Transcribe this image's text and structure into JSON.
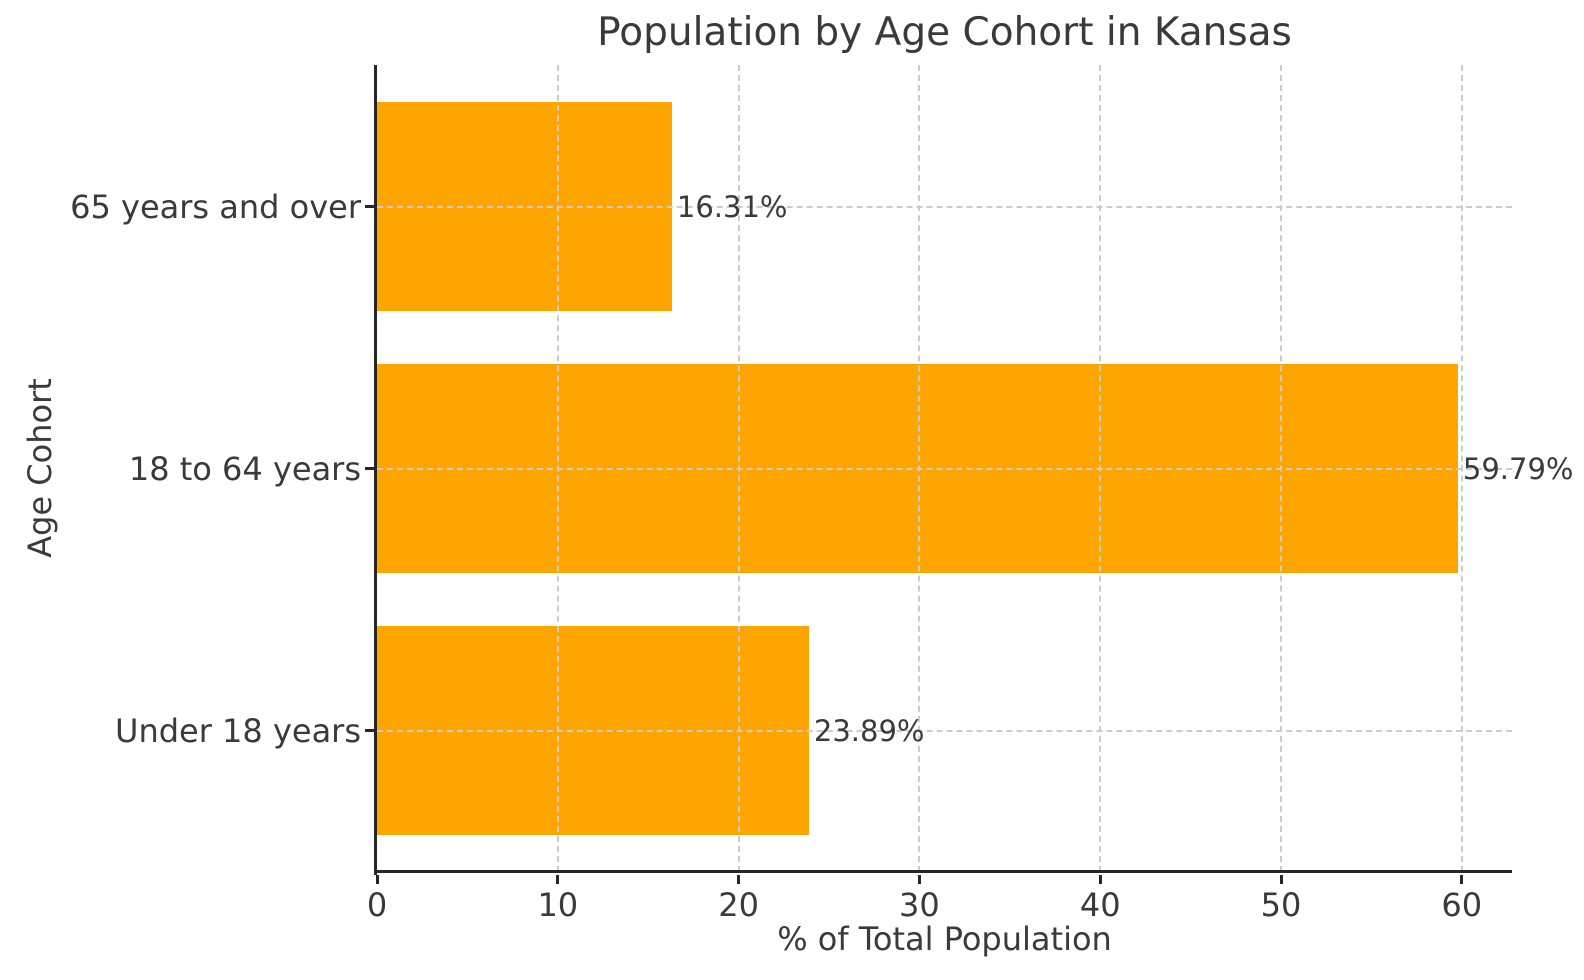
{
  "chart_data": {
    "type": "bar",
    "orientation": "horizontal",
    "title": "Population by Age Cohort in Kansas",
    "xlabel": "% of Total Population",
    "ylabel": "Age Cohort",
    "categories": [
      "Under 18 years",
      "18 to 64 years",
      "65 years and over"
    ],
    "categories_order": "bottom-to-top",
    "values": [
      23.89,
      59.79,
      16.31
    ],
    "value_labels": [
      "23.89%",
      "59.79%",
      "16.31%"
    ],
    "xticks": [
      0,
      10,
      20,
      30,
      40,
      50,
      60
    ],
    "xlim": [
      0,
      62.78
    ],
    "grid": {
      "style": "dashed",
      "axes": "both",
      "drawn_above_bars": true
    },
    "legend": "none",
    "colors": {
      "bar": "#FFA500",
      "text": "#3a3a3a",
      "grid": "#cccccc",
      "spine": "#262626",
      "background": "#ffffff"
    }
  }
}
